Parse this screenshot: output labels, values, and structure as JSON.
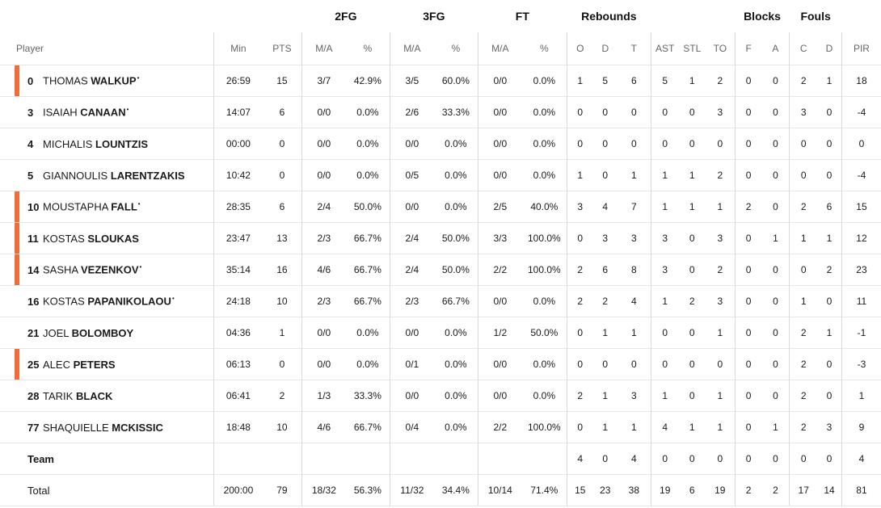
{
  "groups": {
    "fg2": "2FG",
    "fg3": "3FG",
    "ft": "FT",
    "rebounds": "Rebounds",
    "blocks": "Blocks",
    "fouls": "Fouls"
  },
  "columns": {
    "player": "Player",
    "min": "Min",
    "pts": "PTS",
    "fg2_ma": "M/A",
    "fg2_pct": "%",
    "fg3_ma": "M/A",
    "fg3_pct": "%",
    "ft_ma": "M/A",
    "ft_pct": "%",
    "reb_o": "O",
    "reb_d": "D",
    "reb_t": "T",
    "ast": "AST",
    "stl": "STL",
    "to": "TO",
    "blk_f": "F",
    "blk_a": "A",
    "foul_c": "C",
    "foul_d": "D",
    "pir": "PIR"
  },
  "accent_color": "#f26b3a",
  "players": [
    {
      "num": "0",
      "first": "THOMAS",
      "last": "WALKUP",
      "starter": true,
      "highlight": true,
      "min": "26:59",
      "pts": "15",
      "fg2_ma": "3/7",
      "fg2_pct": "42.9%",
      "fg3_ma": "3/5",
      "fg3_pct": "60.0%",
      "ft_ma": "0/0",
      "ft_pct": "0.0%",
      "reb_o": "1",
      "reb_d": "5",
      "reb_t": "6",
      "ast": "5",
      "stl": "1",
      "to": "2",
      "blk_f": "0",
      "blk_a": "0",
      "foul_c": "2",
      "foul_d": "1",
      "pir": "18"
    },
    {
      "num": "3",
      "first": "ISAIAH",
      "last": "CANAAN",
      "starter": true,
      "highlight": false,
      "min": "14:07",
      "pts": "6",
      "fg2_ma": "0/0",
      "fg2_pct": "0.0%",
      "fg3_ma": "2/6",
      "fg3_pct": "33.3%",
      "ft_ma": "0/0",
      "ft_pct": "0.0%",
      "reb_o": "0",
      "reb_d": "0",
      "reb_t": "0",
      "ast": "0",
      "stl": "0",
      "to": "3",
      "blk_f": "0",
      "blk_a": "0",
      "foul_c": "3",
      "foul_d": "0",
      "pir": "-4"
    },
    {
      "num": "4",
      "first": "MICHALIS",
      "last": "LOUNTZIS",
      "starter": false,
      "highlight": false,
      "min": "00:00",
      "pts": "0",
      "fg2_ma": "0/0",
      "fg2_pct": "0.0%",
      "fg3_ma": "0/0",
      "fg3_pct": "0.0%",
      "ft_ma": "0/0",
      "ft_pct": "0.0%",
      "reb_o": "0",
      "reb_d": "0",
      "reb_t": "0",
      "ast": "0",
      "stl": "0",
      "to": "0",
      "blk_f": "0",
      "blk_a": "0",
      "foul_c": "0",
      "foul_d": "0",
      "pir": "0"
    },
    {
      "num": "5",
      "first": "GIANNOULIS",
      "last": "LARENTZAKIS",
      "starter": false,
      "highlight": false,
      "min": "10:42",
      "pts": "0",
      "fg2_ma": "0/0",
      "fg2_pct": "0.0%",
      "fg3_ma": "0/5",
      "fg3_pct": "0.0%",
      "ft_ma": "0/0",
      "ft_pct": "0.0%",
      "reb_o": "1",
      "reb_d": "0",
      "reb_t": "1",
      "ast": "1",
      "stl": "1",
      "to": "2",
      "blk_f": "0",
      "blk_a": "0",
      "foul_c": "0",
      "foul_d": "0",
      "pir": "-4"
    },
    {
      "num": "10",
      "first": "MOUSTAPHA",
      "last": "FALL",
      "starter": true,
      "highlight": true,
      "min": "28:35",
      "pts": "6",
      "fg2_ma": "2/4",
      "fg2_pct": "50.0%",
      "fg3_ma": "0/0",
      "fg3_pct": "0.0%",
      "ft_ma": "2/5",
      "ft_pct": "40.0%",
      "reb_o": "3",
      "reb_d": "4",
      "reb_t": "7",
      "ast": "1",
      "stl": "1",
      "to": "1",
      "blk_f": "2",
      "blk_a": "0",
      "foul_c": "2",
      "foul_d": "6",
      "pir": "15"
    },
    {
      "num": "11",
      "first": "KOSTAS",
      "last": "SLOUKAS",
      "starter": false,
      "highlight": true,
      "min": "23:47",
      "pts": "13",
      "fg2_ma": "2/3",
      "fg2_pct": "66.7%",
      "fg3_ma": "2/4",
      "fg3_pct": "50.0%",
      "ft_ma": "3/3",
      "ft_pct": "100.0%",
      "reb_o": "0",
      "reb_d": "3",
      "reb_t": "3",
      "ast": "3",
      "stl": "0",
      "to": "3",
      "blk_f": "0",
      "blk_a": "1",
      "foul_c": "1",
      "foul_d": "1",
      "pir": "12"
    },
    {
      "num": "14",
      "first": "SASHA",
      "last": "VEZENKOV",
      "starter": true,
      "highlight": true,
      "min": "35:14",
      "pts": "16",
      "fg2_ma": "4/6",
      "fg2_pct": "66.7%",
      "fg3_ma": "2/4",
      "fg3_pct": "50.0%",
      "ft_ma": "2/2",
      "ft_pct": "100.0%",
      "reb_o": "2",
      "reb_d": "6",
      "reb_t": "8",
      "ast": "3",
      "stl": "0",
      "to": "2",
      "blk_f": "0",
      "blk_a": "0",
      "foul_c": "0",
      "foul_d": "2",
      "pir": "23"
    },
    {
      "num": "16",
      "first": "KOSTAS",
      "last": "PAPANIKOLAOU",
      "starter": true,
      "highlight": false,
      "min": "24:18",
      "pts": "10",
      "fg2_ma": "2/3",
      "fg2_pct": "66.7%",
      "fg3_ma": "2/3",
      "fg3_pct": "66.7%",
      "ft_ma": "0/0",
      "ft_pct": "0.0%",
      "reb_o": "2",
      "reb_d": "2",
      "reb_t": "4",
      "ast": "1",
      "stl": "2",
      "to": "3",
      "blk_f": "0",
      "blk_a": "0",
      "foul_c": "1",
      "foul_d": "0",
      "pir": "11"
    },
    {
      "num": "21",
      "first": "JOEL",
      "last": "BOLOMBOY",
      "starter": false,
      "highlight": false,
      "min": "04:36",
      "pts": "1",
      "fg2_ma": "0/0",
      "fg2_pct": "0.0%",
      "fg3_ma": "0/0",
      "fg3_pct": "0.0%",
      "ft_ma": "1/2",
      "ft_pct": "50.0%",
      "reb_o": "0",
      "reb_d": "1",
      "reb_t": "1",
      "ast": "0",
      "stl": "0",
      "to": "1",
      "blk_f": "0",
      "blk_a": "0",
      "foul_c": "2",
      "foul_d": "1",
      "pir": "-1"
    },
    {
      "num": "25",
      "first": "ALEC",
      "last": "PETERS",
      "starter": false,
      "highlight": true,
      "min": "06:13",
      "pts": "0",
      "fg2_ma": "0/0",
      "fg2_pct": "0.0%",
      "fg3_ma": "0/1",
      "fg3_pct": "0.0%",
      "ft_ma": "0/0",
      "ft_pct": "0.0%",
      "reb_o": "0",
      "reb_d": "0",
      "reb_t": "0",
      "ast": "0",
      "stl": "0",
      "to": "0",
      "blk_f": "0",
      "blk_a": "0",
      "foul_c": "2",
      "foul_d": "0",
      "pir": "-3"
    },
    {
      "num": "28",
      "first": "TARIK",
      "last": "BLACK",
      "starter": false,
      "highlight": false,
      "min": "06:41",
      "pts": "2",
      "fg2_ma": "1/3",
      "fg2_pct": "33.3%",
      "fg3_ma": "0/0",
      "fg3_pct": "0.0%",
      "ft_ma": "0/0",
      "ft_pct": "0.0%",
      "reb_o": "2",
      "reb_d": "1",
      "reb_t": "3",
      "ast": "1",
      "stl": "0",
      "to": "1",
      "blk_f": "0",
      "blk_a": "0",
      "foul_c": "2",
      "foul_d": "0",
      "pir": "1"
    },
    {
      "num": "77",
      "first": "SHAQUIELLE",
      "last": "MCKISSIC",
      "starter": false,
      "highlight": false,
      "min": "18:48",
      "pts": "10",
      "fg2_ma": "4/6",
      "fg2_pct": "66.7%",
      "fg3_ma": "0/4",
      "fg3_pct": "0.0%",
      "ft_ma": "2/2",
      "ft_pct": "100.0%",
      "reb_o": "0",
      "reb_d": "1",
      "reb_t": "1",
      "ast": "4",
      "stl": "1",
      "to": "1",
      "blk_f": "0",
      "blk_a": "1",
      "foul_c": "2",
      "foul_d": "3",
      "pir": "9"
    }
  ],
  "team_row": {
    "label": "Team",
    "min": "",
    "pts": "",
    "fg2_ma": "",
    "fg2_pct": "",
    "fg3_ma": "",
    "fg3_pct": "",
    "ft_ma": "",
    "ft_pct": "",
    "reb_o": "4",
    "reb_d": "0",
    "reb_t": "4",
    "ast": "0",
    "stl": "0",
    "to": "0",
    "blk_f": "0",
    "blk_a": "0",
    "foul_c": "0",
    "foul_d": "0",
    "pir": "4"
  },
  "total_row": {
    "label": "Total",
    "min": "200:00",
    "pts": "79",
    "fg2_ma": "18/32",
    "fg2_pct": "56.3%",
    "fg3_ma": "11/32",
    "fg3_pct": "34.4%",
    "ft_ma": "10/14",
    "ft_pct": "71.4%",
    "reb_o": "15",
    "reb_d": "23",
    "reb_t": "38",
    "ast": "19",
    "stl": "6",
    "to": "19",
    "blk_f": "2",
    "blk_a": "2",
    "foul_c": "17",
    "foul_d": "14",
    "pir": "81"
  }
}
